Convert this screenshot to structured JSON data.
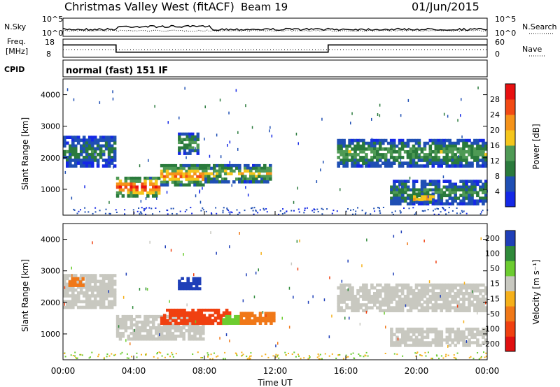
{
  "header": {
    "station": "Christmas Valley West (fitACF)",
    "beam": "Beam 19",
    "date": "01/Jun/2015"
  },
  "noise_panel": {
    "left_label": "N.Sky",
    "right_label": "N.Search",
    "left_ticks": [
      "10^5",
      "10^0"
    ],
    "right_ticks": [
      "10^5",
      "10^0"
    ]
  },
  "freq_panel": {
    "left_label_line1": "Freq.",
    "left_label_line2": "[MHz]",
    "right_label": "Nave",
    "left_ticks": [
      "18",
      "8"
    ],
    "right_ticks": [
      "60",
      "0"
    ],
    "freq_steps": [
      {
        "start_hour": 0,
        "end_hour": 3,
        "mhz": 14.8
      },
      {
        "start_hour": 3,
        "end_hour": 15,
        "mhz": 10.8
      },
      {
        "start_hour": 15,
        "end_hour": 24,
        "mhz": 14.8
      }
    ]
  },
  "cpid": {
    "label": "CPID",
    "mode": "normal (fast) 151 IF"
  },
  "colors": {
    "power_scale": [
      "#1428e6",
      "#1f4fb4",
      "#2a7a3c",
      "#4f9a55",
      "#f5c61c",
      "#f5931a",
      "#f24a14",
      "#e81010"
    ],
    "velocity_scale": [
      "#1f3fb8",
      "#2f8a3a",
      "#6ccc30",
      "#c8c8c0",
      "#f5b01a",
      "#f07818",
      "#f04010",
      "#e01010"
    ],
    "ground_scatter": "#c8c8c0"
  },
  "chart_data": [
    {
      "type": "heatmap",
      "name_hint": "power",
      "ylabel": "Slant Range [km]",
      "xlim": [
        0,
        24
      ],
      "ylim": [
        180,
        4500
      ],
      "yticks": [
        "1000",
        "2000",
        "3000",
        "4000"
      ],
      "colorbar": {
        "label": "Power [dB]",
        "ticks": [
          "4",
          "8",
          "12",
          "16",
          "20",
          "24",
          "28"
        ],
        "range": [
          0,
          32
        ]
      },
      "bands": [
        {
          "start_hour": 0.0,
          "end_hour": 3.0,
          "range_low_km": 1700,
          "range_high_km": 2700,
          "value": 10
        },
        {
          "start_hour": 3.0,
          "end_hour": 5.5,
          "range_low_km": 750,
          "range_high_km": 1400,
          "value": 29
        },
        {
          "start_hour": 5.5,
          "end_hour": 8.0,
          "range_low_km": 1100,
          "range_high_km": 1800,
          "value": 24
        },
        {
          "start_hour": 6.5,
          "end_hour": 7.7,
          "range_low_km": 2100,
          "range_high_km": 2800,
          "value": 14
        },
        {
          "start_hour": 8.0,
          "end_hour": 11.8,
          "range_low_km": 1200,
          "range_high_km": 1800,
          "value": 18
        },
        {
          "start_hour": 15.5,
          "end_hour": 24.0,
          "range_low_km": 1700,
          "range_high_km": 2600,
          "value": 14
        },
        {
          "start_hour": 18.5,
          "end_hour": 24.0,
          "range_low_km": 500,
          "range_high_km": 1300,
          "value": 12
        },
        {
          "start_hour": 19.8,
          "end_hour": 21.0,
          "range_low_km": 550,
          "range_high_km": 900,
          "value": 26
        }
      ]
    },
    {
      "type": "heatmap",
      "name_hint": "velocity",
      "xlabel": "Time UT",
      "ylabel": "Slant Range [km]",
      "xlim": [
        0,
        24
      ],
      "ylim": [
        180,
        4500
      ],
      "xticks": [
        "00:00",
        "04:00",
        "08:00",
        "12:00",
        "16:00",
        "20:00",
        "00:00"
      ],
      "yticks": [
        "1000",
        "2000",
        "3000",
        "4000"
      ],
      "colorbar": {
        "label": "Velocity [m s⁻¹]",
        "ticks": [
          "200",
          "100",
          "50",
          "15",
          "-15",
          "-50",
          "-100",
          "-200"
        ]
      },
      "bands": [
        {
          "start_hour": 0.0,
          "end_hour": 3.0,
          "range_low_km": 1800,
          "range_high_km": 2900,
          "value": 0
        },
        {
          "start_hour": 0.3,
          "end_hour": 1.2,
          "range_low_km": 2500,
          "range_high_km": 2800,
          "value": -80
        },
        {
          "start_hour": 3.0,
          "end_hour": 8.0,
          "range_low_km": 800,
          "range_high_km": 1600,
          "value": 0
        },
        {
          "start_hour": 5.5,
          "end_hour": 9.5,
          "range_low_km": 1300,
          "range_high_km": 1800,
          "value": -150
        },
        {
          "start_hour": 9.0,
          "end_hour": 10.0,
          "range_low_km": 1300,
          "range_high_km": 1600,
          "value": 40
        },
        {
          "start_hour": 10.0,
          "end_hour": 12.0,
          "range_low_km": 1300,
          "range_high_km": 1700,
          "value": -60
        },
        {
          "start_hour": 6.5,
          "end_hour": 7.8,
          "range_low_km": 2400,
          "range_high_km": 2800,
          "value": 150
        },
        {
          "start_hour": 15.5,
          "end_hour": 24.0,
          "range_low_km": 1700,
          "range_high_km": 2600,
          "value": 0
        },
        {
          "start_hour": 18.5,
          "end_hour": 24.0,
          "range_low_km": 600,
          "range_high_km": 1200,
          "value": 0
        }
      ]
    }
  ]
}
